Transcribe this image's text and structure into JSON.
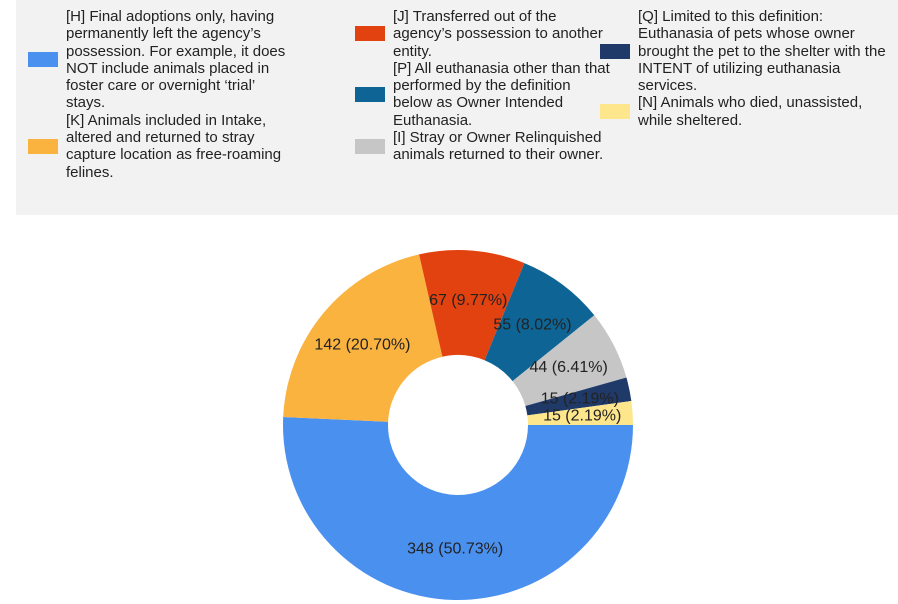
{
  "chart_data": {
    "type": "pie",
    "donut": true,
    "categories": [
      "[H] Final adoptions only, having permanently left the agency’s possession. For example, it does NOT include animals placed in foster care or overnight ‘trial’ stays.",
      "[K] Animals included in Intake, altered and returned to stray capture location as free-roaming felines.",
      "[J] Transferred out of the agency’s possession to another entity.",
      "[P] All euthanasia other than that performed by the definition below as Owner Intended Euthanasia.",
      "[I] Stray or Owner Relinquished animals returned to their owner.",
      "[Q] Limited to this definition: Euthanasia of pets whose owner brought the pet to the shelter with the INTENT of utilizing euthanasia services.",
      "[N] Animals who died, unassisted, while sheltered."
    ],
    "values": [
      348,
      142,
      67,
      55,
      44,
      15,
      15
    ],
    "value_labels": [
      "348 (50.73%)",
      "142 (20.70%)",
      "67 (9.77%)",
      "55 (8.02%)",
      "44 (6.41%)",
      "15 (2.19%)",
      "15 (2.19%)"
    ],
    "colors": [
      "#4a91ef",
      "#fbb340",
      "#e2420f",
      "#0e6595",
      "#c6c6c6",
      "#1f3a69",
      "#fde68b"
    ]
  }
}
